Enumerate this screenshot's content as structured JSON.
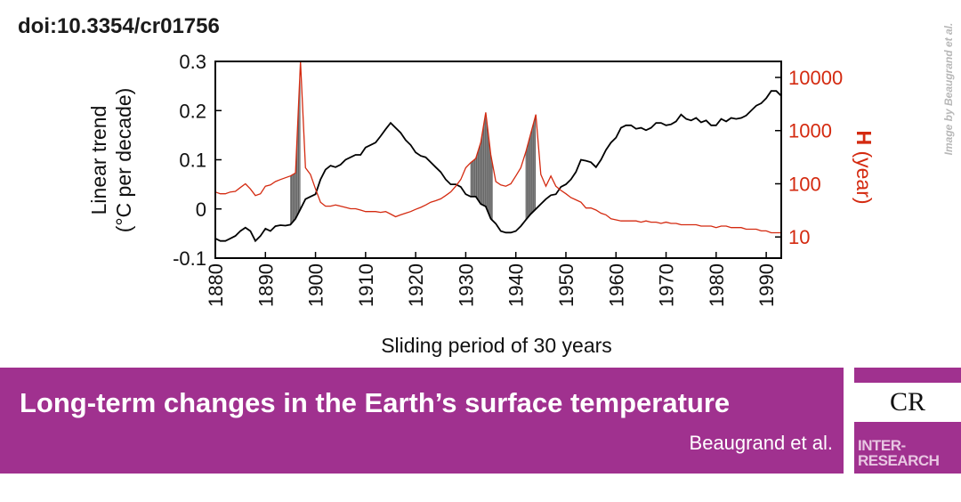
{
  "header": {
    "doi": "doi:10.3354/cr01756",
    "credit": "Image by Beaugrand et al."
  },
  "banner": {
    "title": "Long-term changes in the Earth’s surface temperature",
    "authors": "Beaugrand et al."
  },
  "logo": {
    "cr": "CR",
    "line1": "INTER-",
    "line2": "RESEARCH"
  },
  "colors": {
    "trend": "#000000",
    "h": "#d42a10",
    "brand": "#a0318f"
  },
  "chart_data": {
    "type": "line",
    "xlabel": "Sliding period of 30 years",
    "ylabel_left": [
      "Linear trend",
      "(°C per decade)"
    ],
    "ylabel_right": [
      "H",
      "(year)"
    ],
    "xlim": [
      1880,
      1993
    ],
    "ylim_left": [
      -0.1,
      0.3
    ],
    "ylim_right_log": [
      4,
      20000
    ],
    "x_ticks": [
      1880,
      1890,
      1900,
      1910,
      1920,
      1930,
      1940,
      1950,
      1960,
      1970,
      1980,
      1990
    ],
    "y_ticks_left": [
      "-0.1",
      "0",
      "0.1",
      "0.2",
      "0.3"
    ],
    "y_ticks_right": [
      "10",
      "100",
      "1000",
      "10000"
    ],
    "grid": false,
    "series": [
      {
        "axis": "left",
        "color": "#000000",
        "points": [
          [
            1880,
            -0.06
          ],
          [
            1881,
            -0.065
          ],
          [
            1882,
            -0.065
          ],
          [
            1883,
            -0.06
          ],
          [
            1884,
            -0.055
          ],
          [
            1885,
            -0.045
          ],
          [
            1886,
            -0.038
          ],
          [
            1887,
            -0.045
          ],
          [
            1888,
            -0.065
          ],
          [
            1889,
            -0.055
          ],
          [
            1890,
            -0.04
          ],
          [
            1891,
            -0.045
          ],
          [
            1892,
            -0.035
          ],
          [
            1893,
            -0.033
          ],
          [
            1894,
            -0.034
          ],
          [
            1895,
            -0.032
          ],
          [
            1896,
            -0.02
          ],
          [
            1897,
            0.0
          ],
          [
            1898,
            0.02
          ],
          [
            1899,
            0.025
          ],
          [
            1900,
            0.03
          ],
          [
            1901,
            0.06
          ],
          [
            1902,
            0.08
          ],
          [
            1903,
            0.088
          ],
          [
            1904,
            0.085
          ],
          [
            1905,
            0.09
          ],
          [
            1906,
            0.1
          ],
          [
            1907,
            0.105
          ],
          [
            1908,
            0.11
          ],
          [
            1909,
            0.11
          ],
          [
            1910,
            0.125
          ],
          [
            1911,
            0.13
          ],
          [
            1912,
            0.135
          ],
          [
            1913,
            0.148
          ],
          [
            1914,
            0.162
          ],
          [
            1915,
            0.175
          ],
          [
            1916,
            0.165
          ],
          [
            1917,
            0.155
          ],
          [
            1918,
            0.14
          ],
          [
            1919,
            0.13
          ],
          [
            1920,
            0.115
          ],
          [
            1921,
            0.108
          ],
          [
            1922,
            0.105
          ],
          [
            1923,
            0.095
          ],
          [
            1924,
            0.085
          ],
          [
            1925,
            0.075
          ],
          [
            1926,
            0.06
          ],
          [
            1927,
            0.05
          ],
          [
            1928,
            0.05
          ],
          [
            1929,
            0.045
          ],
          [
            1930,
            0.03
          ],
          [
            1931,
            0.025
          ],
          [
            1932,
            0.025
          ],
          [
            1933,
            0.01
          ],
          [
            1934,
            0.005
          ],
          [
            1935,
            -0.02
          ],
          [
            1936,
            -0.03
          ],
          [
            1937,
            -0.045
          ],
          [
            1938,
            -0.048
          ],
          [
            1939,
            -0.048
          ],
          [
            1940,
            -0.045
          ],
          [
            1941,
            -0.035
          ],
          [
            1942,
            -0.022
          ],
          [
            1943,
            -0.01
          ],
          [
            1944,
            0.0
          ],
          [
            1945,
            0.01
          ],
          [
            1946,
            0.02
          ],
          [
            1947,
            0.028
          ],
          [
            1948,
            0.03
          ],
          [
            1949,
            0.045
          ],
          [
            1950,
            0.05
          ],
          [
            1951,
            0.06
          ],
          [
            1952,
            0.075
          ],
          [
            1953,
            0.1
          ],
          [
            1954,
            0.098
          ],
          [
            1955,
            0.095
          ],
          [
            1956,
            0.085
          ],
          [
            1957,
            0.1
          ],
          [
            1958,
            0.12
          ],
          [
            1959,
            0.135
          ],
          [
            1960,
            0.145
          ],
          [
            1961,
            0.165
          ],
          [
            1962,
            0.17
          ],
          [
            1963,
            0.17
          ],
          [
            1964,
            0.163
          ],
          [
            1965,
            0.165
          ],
          [
            1966,
            0.16
          ],
          [
            1967,
            0.165
          ],
          [
            1968,
            0.175
          ],
          [
            1969,
            0.175
          ],
          [
            1970,
            0.17
          ],
          [
            1971,
            0.172
          ],
          [
            1972,
            0.178
          ],
          [
            1973,
            0.192
          ],
          [
            1974,
            0.183
          ],
          [
            1975,
            0.18
          ],
          [
            1976,
            0.185
          ],
          [
            1977,
            0.176
          ],
          [
            1978,
            0.18
          ],
          [
            1979,
            0.17
          ],
          [
            1980,
            0.17
          ],
          [
            1981,
            0.183
          ],
          [
            1982,
            0.178
          ],
          [
            1983,
            0.185
          ],
          [
            1984,
            0.183
          ],
          [
            1985,
            0.185
          ],
          [
            1986,
            0.19
          ],
          [
            1987,
            0.2
          ],
          [
            1988,
            0.21
          ],
          [
            1989,
            0.215
          ],
          [
            1990,
            0.225
          ],
          [
            1991,
            0.24
          ],
          [
            1992,
            0.24
          ],
          [
            1993,
            0.23
          ]
        ]
      },
      {
        "axis": "right",
        "color": "#d42a10",
        "points": [
          [
            1880,
            70
          ],
          [
            1881,
            65
          ],
          [
            1882,
            65
          ],
          [
            1883,
            70
          ],
          [
            1884,
            72
          ],
          [
            1885,
            85
          ],
          [
            1886,
            100
          ],
          [
            1887,
            80
          ],
          [
            1888,
            60
          ],
          [
            1889,
            65
          ],
          [
            1890,
            90
          ],
          [
            1891,
            95
          ],
          [
            1892,
            110
          ],
          [
            1893,
            120
          ],
          [
            1894,
            130
          ],
          [
            1895,
            140
          ],
          [
            1896,
            160
          ],
          [
            1897,
            20000
          ],
          [
            1898,
            200
          ],
          [
            1899,
            150
          ],
          [
            1900,
            80
          ],
          [
            1901,
            45
          ],
          [
            1902,
            38
          ],
          [
            1903,
            38
          ],
          [
            1904,
            40
          ],
          [
            1905,
            38
          ],
          [
            1906,
            36
          ],
          [
            1907,
            34
          ],
          [
            1908,
            34
          ],
          [
            1909,
            32
          ],
          [
            1910,
            30
          ],
          [
            1911,
            30
          ],
          [
            1912,
            30
          ],
          [
            1913,
            29
          ],
          [
            1914,
            30
          ],
          [
            1915,
            27
          ],
          [
            1916,
            24
          ],
          [
            1917,
            26
          ],
          [
            1918,
            28
          ],
          [
            1919,
            30
          ],
          [
            1920,
            33
          ],
          [
            1921,
            36
          ],
          [
            1922,
            40
          ],
          [
            1923,
            45
          ],
          [
            1924,
            48
          ],
          [
            1925,
            52
          ],
          [
            1926,
            60
          ],
          [
            1927,
            70
          ],
          [
            1928,
            90
          ],
          [
            1929,
            120
          ],
          [
            1930,
            200
          ],
          [
            1931,
            250
          ],
          [
            1932,
            300
          ],
          [
            1933,
            600
          ],
          [
            1934,
            2200
          ],
          [
            1935,
            350
          ],
          [
            1936,
            110
          ],
          [
            1937,
            95
          ],
          [
            1938,
            90
          ],
          [
            1939,
            100
          ],
          [
            1940,
            140
          ],
          [
            1941,
            200
          ],
          [
            1942,
            400
          ],
          [
            1943,
            900
          ],
          [
            1944,
            2000
          ],
          [
            1945,
            150
          ],
          [
            1946,
            90
          ],
          [
            1947,
            140
          ],
          [
            1948,
            90
          ],
          [
            1949,
            75
          ],
          [
            1950,
            65
          ],
          [
            1951,
            55
          ],
          [
            1952,
            50
          ],
          [
            1953,
            45
          ],
          [
            1954,
            35
          ],
          [
            1955,
            35
          ],
          [
            1956,
            32
          ],
          [
            1957,
            28
          ],
          [
            1958,
            26
          ],
          [
            1959,
            22
          ],
          [
            1960,
            21
          ],
          [
            1961,
            20
          ],
          [
            1962,
            20
          ],
          [
            1963,
            20
          ],
          [
            1964,
            20
          ],
          [
            1965,
            19
          ],
          [
            1966,
            20
          ],
          [
            1967,
            19
          ],
          [
            1968,
            19
          ],
          [
            1969,
            18
          ],
          [
            1970,
            19
          ],
          [
            1971,
            18
          ],
          [
            1972,
            18
          ],
          [
            1973,
            17
          ],
          [
            1974,
            17
          ],
          [
            1975,
            17
          ],
          [
            1976,
            17
          ],
          [
            1977,
            16
          ],
          [
            1978,
            16
          ],
          [
            1979,
            16
          ],
          [
            1980,
            15
          ],
          [
            1981,
            16
          ],
          [
            1982,
            16
          ],
          [
            1983,
            15
          ],
          [
            1984,
            15
          ],
          [
            1985,
            15
          ],
          [
            1986,
            14
          ],
          [
            1987,
            14
          ],
          [
            1988,
            14
          ],
          [
            1989,
            13
          ],
          [
            1990,
            13
          ],
          [
            1991,
            12
          ],
          [
            1992,
            12
          ],
          [
            1993,
            12
          ]
        ]
      }
    ]
  }
}
